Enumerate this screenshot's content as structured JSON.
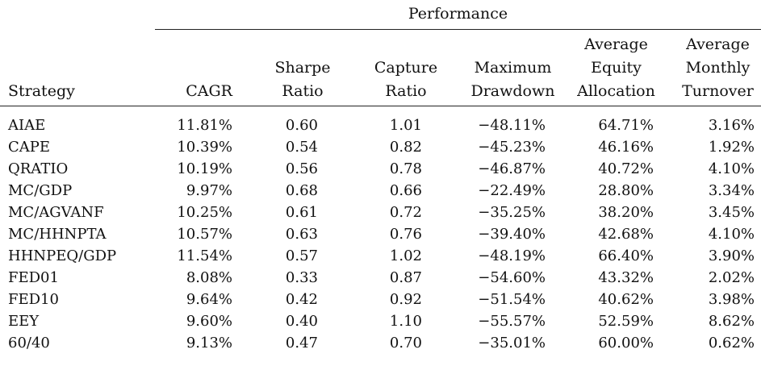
{
  "table": {
    "group_header": "Performance",
    "columns": [
      "Strategy",
      "CAGR",
      "Sharpe\nRatio",
      "Capture\nRatio",
      "Maximum\nDrawdown",
      "Average\nEquity\nAllocation",
      "Average\nMonthly\nTurnover"
    ],
    "rows": [
      [
        "AIAE",
        "11.81%",
        "0.60",
        "1.01",
        "−48.11%",
        "64.71%",
        "3.16%"
      ],
      [
        "CAPE",
        "10.39%",
        "0.54",
        "0.82",
        "−45.23%",
        "46.16%",
        "1.92%"
      ],
      [
        "QRATIO",
        "10.19%",
        "0.56",
        "0.78",
        "−46.87%",
        "40.72%",
        "4.10%"
      ],
      [
        "MC/GDP",
        "9.97%",
        "0.68",
        "0.66",
        "−22.49%",
        "28.80%",
        "3.34%"
      ],
      [
        "MC/AGVANF",
        "10.25%",
        "0.61",
        "0.72",
        "−35.25%",
        "38.20%",
        "3.45%"
      ],
      [
        "MC/HHNPTA",
        "10.57%",
        "0.63",
        "0.76",
        "−39.40%",
        "42.68%",
        "4.10%"
      ],
      [
        "HHNPEQ/GDP",
        "11.54%",
        "0.57",
        "1.02",
        "−48.19%",
        "66.40%",
        "3.90%"
      ],
      [
        "FED01",
        "8.08%",
        "0.33",
        "0.87",
        "−54.60%",
        "43.32%",
        "2.02%"
      ],
      [
        "FED10",
        "9.64%",
        "0.42",
        "0.92",
        "−51.54%",
        "40.62%",
        "3.98%"
      ],
      [
        "EEY",
        "9.60%",
        "0.40",
        "1.10",
        "−55.57%",
        "52.59%",
        "8.62%"
      ],
      [
        "60/40",
        "9.13%",
        "0.47",
        "0.70",
        "−35.01%",
        "60.00%",
        "0.62%"
      ]
    ]
  }
}
